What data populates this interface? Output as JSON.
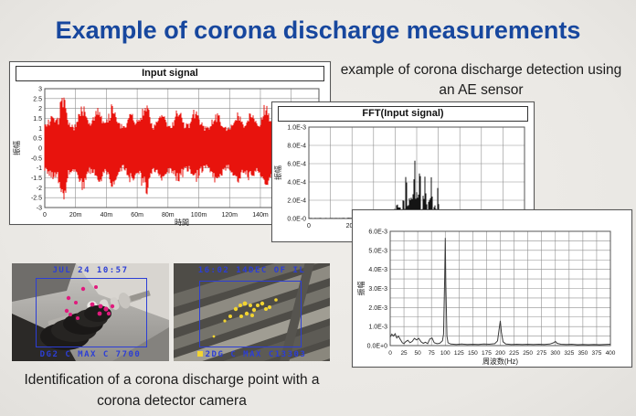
{
  "page": {
    "title": "Example of corona discharge measurements",
    "title_color": "#17479E",
    "background_color": "#ECEAE6"
  },
  "ae_note": {
    "line1": "example of corona discharge detection using",
    "line2": "an AE sensor"
  },
  "caption": {
    "line1": "Identification of a corona discharge point with a",
    "line2": "corona detector camera"
  },
  "photos": {
    "left": {
      "top_text": "JUL 24 10:57",
      "bottom_text": "DG2 C MAX C 7700",
      "overlay_color": "#2c3ed6",
      "dot_color": "#e01a7d"
    },
    "right": {
      "top_text": "16:02 14DEC OF IL",
      "bottom_text": "2DG C MAX C13303",
      "overlay_color": "#2c3ed6",
      "dot_color": "#f2d431",
      "marker_icon": "yellow-square"
    }
  },
  "chart_data": [
    {
      "id": "input_signal",
      "type": "area",
      "title": "Input signal",
      "xlabel": "時間",
      "ylabel": "振幅",
      "ylim": [
        -3,
        3
      ],
      "yticks": [
        "3",
        "2.5",
        "2",
        "1.5",
        "1",
        "0.5",
        "0",
        "-0.5",
        "-1",
        "-1.5",
        "-2",
        "-2.5",
        "-3"
      ],
      "xticks": [
        "0",
        "20m",
        "40m",
        "60m",
        "80m",
        "100m",
        "120m",
        "140m",
        "160m"
      ],
      "x_range_ms": [
        0,
        178
      ],
      "grid": true,
      "series_color": "#E8130D",
      "waveform": {
        "description": "dense noise band ±1 with periodic bursts reaching about ±2.5",
        "base_amplitude": 1.0,
        "burst_amplitude": 2.4,
        "burst_spacing_ms": 11,
        "seed": 7
      }
    },
    {
      "id": "fft_input_signal",
      "type": "bar",
      "title": "FFT(Input signal)",
      "xlabel": "",
      "ylabel": "振幅",
      "ylim": [
        0,
        0.001
      ],
      "yticks": [
        "1.0E-3",
        "8.0E-4",
        "6.0E-4",
        "4.0E-4",
        "2.0E-4",
        "0.0E-0"
      ],
      "xticks": [
        "0",
        "20k",
        "40k"
      ],
      "grid": true,
      "series_color": "#141414",
      "spectrum": {
        "description": "black spike cluster between about 35k and 75k Hz, max about 7.0E-4 near 50k",
        "cluster_center_hz": 51000,
        "cluster_sigma_hz": 8500,
        "main_peaks": [
          [
            46000,
            0.00055
          ],
          [
            50000,
            0.0007
          ],
          [
            52500,
            0.00062
          ],
          [
            55000,
            0.00049
          ],
          [
            58000,
            0.00047
          ],
          [
            61000,
            0.00034
          ]
        ],
        "seed": 3
      }
    },
    {
      "id": "low_freq_spectrum",
      "type": "line",
      "title": "",
      "xlabel": "周波数(Hz)",
      "ylabel": "振幅",
      "ylim": [
        0,
        0.006
      ],
      "xlim": [
        0,
        400
      ],
      "yticks": [
        "6.0E-3",
        "5.0E-3",
        "4.0E-3",
        "3.0E-3",
        "2.0E-3",
        "1.0E-3",
        "0.0E+0"
      ],
      "xticks": [
        "0",
        "25",
        "50",
        "75",
        "100",
        "125",
        "150",
        "175",
        "200",
        "225",
        "250",
        "275",
        "300",
        "325",
        "350",
        "375",
        "400"
      ],
      "grid": true,
      "series_color": "#3b3b3b",
      "points": [
        [
          0,
          0.00045
        ],
        [
          3,
          0.0006
        ],
        [
          6,
          0.0005
        ],
        [
          9,
          0.00062
        ],
        [
          12,
          0.0004
        ],
        [
          15,
          0.0005
        ],
        [
          18,
          0.00035
        ],
        [
          22,
          0.00015
        ],
        [
          25,
          0.0001
        ],
        [
          28,
          0.0002
        ],
        [
          32,
          0.00028
        ],
        [
          36,
          0.00015
        ],
        [
          40,
          0.00022
        ],
        [
          44,
          0.00038
        ],
        [
          48,
          0.0003
        ],
        [
          52,
          0.00038
        ],
        [
          56,
          0.0002
        ],
        [
          60,
          0.00012
        ],
        [
          64,
          0.00018
        ],
        [
          68,
          0.0001
        ],
        [
          72,
          0.00035
        ],
        [
          76,
          0.0004
        ],
        [
          80,
          0.00015
        ],
        [
          85,
          0.0001
        ],
        [
          90,
          0.00012
        ],
        [
          95,
          0.00025
        ],
        [
          97,
          0.0006
        ],
        [
          99,
          0.0035
        ],
        [
          100,
          0.00565
        ],
        [
          101,
          0.0032
        ],
        [
          103,
          0.0005
        ],
        [
          105,
          0.00015
        ],
        [
          110,
          8e-05
        ],
        [
          120,
          6e-05
        ],
        [
          130,
          8e-05
        ],
        [
          140,
          6e-05
        ],
        [
          150,
          7e-05
        ],
        [
          160,
          6e-05
        ],
        [
          170,
          8e-05
        ],
        [
          180,
          7e-05
        ],
        [
          190,
          0.0001
        ],
        [
          195,
          0.00025
        ],
        [
          198,
          0.0009
        ],
        [
          200,
          0.0013
        ],
        [
          202,
          0.0007
        ],
        [
          205,
          0.0002
        ],
        [
          210,
          8e-05
        ],
        [
          220,
          6e-05
        ],
        [
          230,
          7e-05
        ],
        [
          240,
          6e-05
        ],
        [
          250,
          7e-05
        ],
        [
          260,
          6e-05
        ],
        [
          270,
          7e-05
        ],
        [
          280,
          6e-05
        ],
        [
          290,
          8e-05
        ],
        [
          297,
          0.00015
        ],
        [
          300,
          0.00022
        ],
        [
          303,
          0.00012
        ],
        [
          310,
          7e-05
        ],
        [
          320,
          6e-05
        ],
        [
          330,
          7e-05
        ],
        [
          340,
          5e-05
        ],
        [
          350,
          6e-05
        ],
        [
          360,
          5e-05
        ],
        [
          370,
          6e-05
        ],
        [
          380,
          5e-05
        ],
        [
          390,
          6e-05
        ],
        [
          400,
          7e-05
        ]
      ]
    }
  ]
}
